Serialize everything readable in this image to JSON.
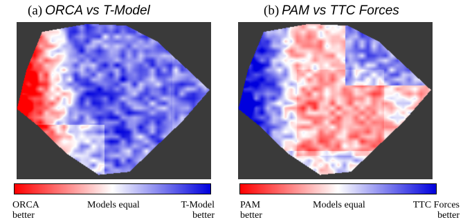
{
  "chart_data": [
    {
      "type": "heatmap",
      "panel_label": "(a)",
      "title": "ORCA vs T-Model",
      "colorbar": {
        "low_color": "#ff0000",
        "mid_color": "#ffffff",
        "high_color": "#0000dd",
        "low_label": "ORCA\nbetter",
        "mid_label": "Models equal",
        "high_label": "T-Model\nbetter"
      },
      "dominant_regions": {
        "left_edge": "red",
        "center_right": "blue",
        "bottom_left": "light"
      }
    },
    {
      "type": "heatmap",
      "panel_label": "(b)",
      "title": "PAM vs TTC Forces",
      "colorbar": {
        "low_color": "#ff0000",
        "mid_color": "#ffffff",
        "high_color": "#0000dd",
        "low_label": "PAM\nbetter",
        "mid_label": "Models equal",
        "high_label": "TTC Forces\nbetter"
      },
      "dominant_regions": {
        "left_edge": "blue",
        "top_right": "blue",
        "center": "light-red"
      }
    }
  ]
}
